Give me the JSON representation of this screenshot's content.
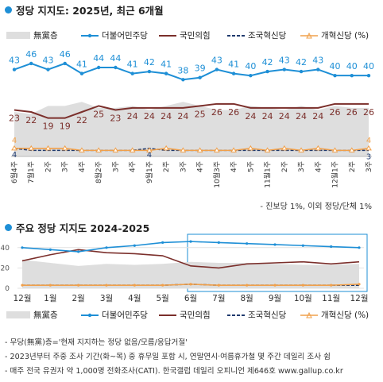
{
  "title1": "정당 지지도: 2025년, 최근 6개월",
  "title2": "주요 정당 지지도 2024-2025",
  "legend": {
    "none": "無黨층",
    "dem": "더불어민주당",
    "ppp": "국민의힘",
    "rebuild": "조국혁신당",
    "reform": "개혁신당 (%)"
  },
  "colors": {
    "dem": "#1e8fd6",
    "ppp": "#7b2f2b",
    "rebuild": "#1f3a6e",
    "reform": "#f0a04b",
    "none": "#dedede"
  },
  "note1": "- 진보당 1%, 이외 정당/단체 1%",
  "footnotes": [
    "- 무당(無黨)층='현재 지지하는 정당 없음/모름/응답거절'",
    "- 2023년부터 주중 조사 기간(화~목) 중 휴무일 포함 시, 연말연시·여름휴가철 몇 주간 데일리 조사 쉼",
    "- 매주 전국 유권자 약 1,000명 전화조사(CATI). 한국갤럽 데일리 오피니언 제646호 www.gallup.co.kr"
  ],
  "chart_data": [
    {
      "type": "line",
      "title": "정당 지지도: 2025년, 최근 6개월",
      "categories": [
        "6월4주",
        "7월1주",
        "2주",
        "3주",
        "4주",
        "8월2주",
        "3주",
        "4주",
        "9월1주",
        "2주",
        "3주",
        "4주",
        "10월3주",
        "4주",
        "5주",
        "11월1주",
        "2주",
        "3주",
        "4주",
        "12월1주",
        "2주",
        "3주"
      ],
      "ylim": [
        0,
        55
      ],
      "series": [
        {
          "name": "더불어민주당",
          "values": [
            43,
            46,
            43,
            46,
            41,
            44,
            44,
            41,
            42,
            41,
            38,
            39,
            43,
            41,
            40,
            42,
            43,
            42,
            43,
            40,
            40,
            40
          ],
          "labels": [
            43,
            46,
            43,
            46,
            41,
            44,
            44,
            41,
            42,
            41,
            38,
            39,
            43,
            41,
            40,
            42,
            43,
            42,
            43,
            40,
            40,
            40
          ]
        },
        {
          "name": "국민의힘",
          "values": [
            23,
            22,
            19,
            19,
            22,
            25,
            23,
            24,
            24,
            24,
            24,
            25,
            26,
            26,
            24,
            24,
            24,
            24,
            24,
            26,
            26,
            26
          ],
          "labels": [
            23,
            22,
            19,
            19,
            22,
            25,
            23,
            24,
            24,
            24,
            24,
            25,
            26,
            26,
            24,
            24,
            24,
            24,
            24,
            26,
            26,
            26
          ]
        },
        {
          "name": "조국혁신당",
          "values": [
            4,
            3,
            3,
            3,
            3,
            3,
            3,
            3,
            4,
            3,
            3,
            3,
            3,
            3,
            3,
            3,
            3,
            3,
            3,
            3,
            3,
            3
          ],
          "labels": [
            4,
            null,
            null,
            null,
            null,
            null,
            null,
            null,
            4,
            null,
            null,
            null,
            null,
            null,
            null,
            null,
            null,
            null,
            null,
            null,
            null,
            3
          ]
        },
        {
          "name": "개혁신당",
          "values": [
            4,
            4,
            4,
            4,
            3,
            3,
            3,
            3,
            3,
            4,
            3,
            3,
            3,
            3,
            4,
            3,
            4,
            3,
            4,
            3,
            3,
            4
          ],
          "labels": [
            4,
            null,
            null,
            null,
            null,
            null,
            null,
            null,
            null,
            null,
            null,
            null,
            null,
            null,
            null,
            null,
            null,
            null,
            null,
            null,
            null,
            4
          ]
        },
        {
          "name": "無黨층",
          "values": [
            22,
            21,
            25,
            25,
            27,
            24,
            24,
            25,
            23,
            25,
            27,
            25,
            23,
            23,
            25,
            24,
            23,
            25,
            23,
            25,
            24,
            24
          ]
        }
      ]
    },
    {
      "type": "line",
      "title": "주요 정당 지지도 2024-2025",
      "categories": [
        "12월",
        "1월",
        "2월",
        "3월",
        "4월",
        "5월",
        "6월",
        "7월",
        "8월",
        "9월",
        "10월",
        "11월",
        "12월"
      ],
      "yticks": [
        0,
        20,
        40
      ],
      "ylim": [
        0,
        50
      ],
      "series": [
        {
          "name": "더불어민주당",
          "values": [
            40,
            38,
            36,
            40,
            42,
            45,
            46,
            45,
            44,
            43,
            42,
            41,
            40
          ]
        },
        {
          "name": "국민의힘",
          "values": [
            27,
            33,
            38,
            35,
            34,
            32,
            22,
            20,
            24,
            25,
            26,
            24,
            26
          ]
        },
        {
          "name": "조국혁신당",
          "values": [
            3,
            3,
            3,
            3,
            3,
            3,
            4,
            3,
            3,
            3,
            3,
            3,
            3
          ]
        },
        {
          "name": "개혁신당",
          "values": [
            3,
            3,
            3,
            3,
            3,
            3,
            4,
            3,
            3,
            3,
            3,
            3,
            4
          ]
        },
        {
          "name": "無黨층",
          "values": [
            28,
            25,
            22,
            24,
            23,
            24,
            26,
            25,
            25,
            24,
            23,
            23,
            24
          ]
        }
      ]
    }
  ]
}
